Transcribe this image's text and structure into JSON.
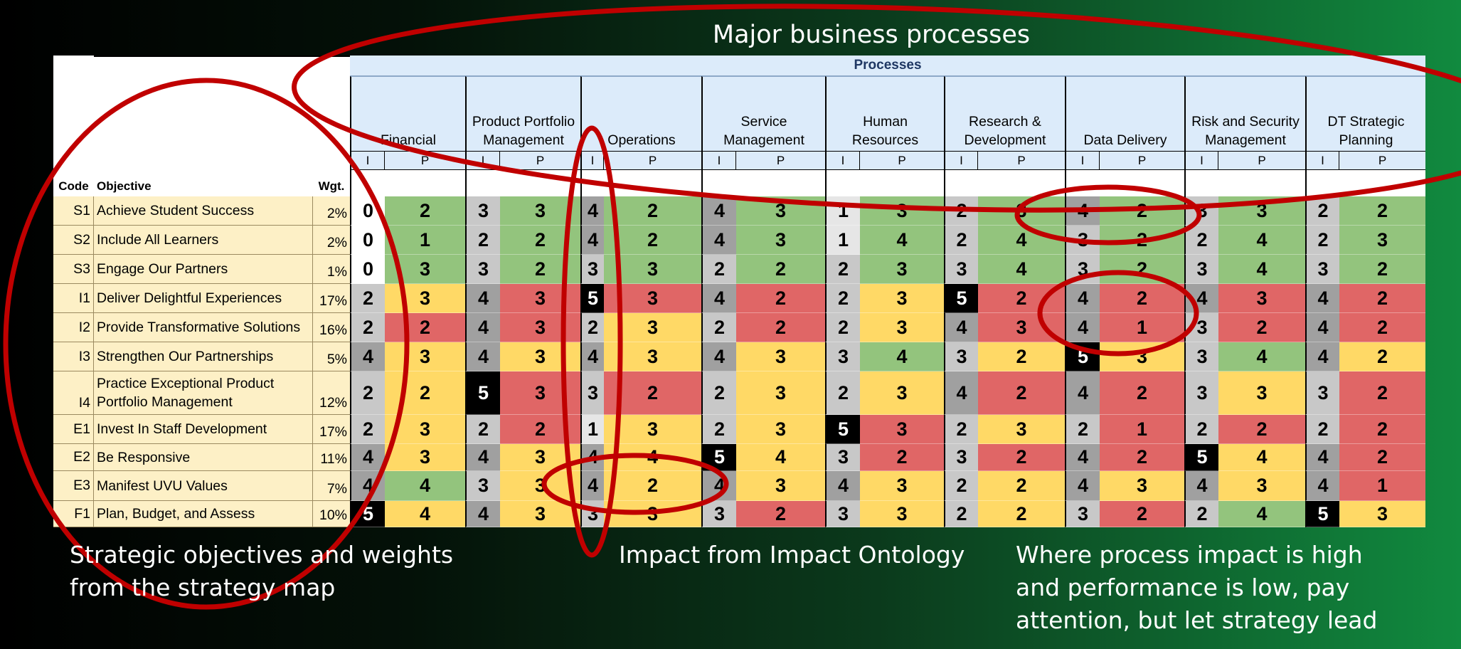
{
  "title": "Major business processes",
  "processes_header": "Processes",
  "column_headers": {
    "code": "Code",
    "objective": "Objective",
    "weight": "Wgt."
  },
  "impact_label": "I",
  "performance_label": "P",
  "processes": [
    "Financial",
    "Product Portfolio\nManagement",
    "Operations",
    "Service\nManagement",
    "Human\nResources",
    "Research &\nDevelopment",
    "Data Delivery",
    "Risk and Security\nManagement",
    "DT Strategic\nPlanning"
  ],
  "objectives": [
    {
      "code": "S1",
      "objective": "Achieve Student Success",
      "weight": "2%",
      "values": [
        [
          0,
          2
        ],
        [
          3,
          3
        ],
        [
          4,
          2
        ],
        [
          4,
          3
        ],
        [
          1,
          3
        ],
        [
          2,
          3
        ],
        [
          4,
          2
        ],
        [
          3,
          3
        ],
        [
          2,
          2
        ]
      ]
    },
    {
      "code": "S2",
      "objective": "Include All Learners",
      "weight": "2%",
      "values": [
        [
          0,
          1
        ],
        [
          2,
          2
        ],
        [
          4,
          2
        ],
        [
          4,
          3
        ],
        [
          1,
          4
        ],
        [
          2,
          4
        ],
        [
          3,
          2
        ],
        [
          2,
          4
        ],
        [
          2,
          3
        ]
      ]
    },
    {
      "code": "S3",
      "objective": "Engage Our Partners",
      "weight": "1%",
      "values": [
        [
          0,
          3
        ],
        [
          3,
          2
        ],
        [
          3,
          3
        ],
        [
          2,
          2
        ],
        [
          2,
          3
        ],
        [
          3,
          4
        ],
        [
          3,
          2
        ],
        [
          3,
          4
        ],
        [
          3,
          2
        ]
      ]
    },
    {
      "code": "I1",
      "objective": "Deliver Delightful Experiences",
      "weight": "17%",
      "values": [
        [
          2,
          3
        ],
        [
          4,
          3
        ],
        [
          5,
          3
        ],
        [
          4,
          2
        ],
        [
          2,
          3
        ],
        [
          5,
          2
        ],
        [
          4,
          2
        ],
        [
          4,
          3
        ],
        [
          4,
          2
        ]
      ]
    },
    {
      "code": "I2",
      "objective": "Provide Transformative Solutions",
      "weight": "16%",
      "values": [
        [
          2,
          2
        ],
        [
          4,
          3
        ],
        [
          2,
          3
        ],
        [
          2,
          2
        ],
        [
          2,
          3
        ],
        [
          4,
          3
        ],
        [
          4,
          1
        ],
        [
          3,
          2
        ],
        [
          4,
          2
        ]
      ]
    },
    {
      "code": "I3",
      "objective": "Strengthen Our Partnerships",
      "weight": "5%",
      "values": [
        [
          4,
          3
        ],
        [
          4,
          3
        ],
        [
          4,
          3
        ],
        [
          4,
          3
        ],
        [
          3,
          4
        ],
        [
          3,
          2
        ],
        [
          5,
          3
        ],
        [
          3,
          4
        ],
        [
          4,
          2
        ]
      ]
    },
    {
      "code": "I4",
      "objective": "Practice Exceptional Product\nPortfolio Management",
      "weight": "12%",
      "values": [
        [
          2,
          2
        ],
        [
          5,
          3
        ],
        [
          3,
          2
        ],
        [
          2,
          3
        ],
        [
          2,
          3
        ],
        [
          4,
          2
        ],
        [
          4,
          2
        ],
        [
          3,
          3
        ],
        [
          3,
          2
        ]
      ]
    },
    {
      "code": "E1",
      "objective": "Invest In Staff Development",
      "weight": "17%",
      "values": [
        [
          2,
          3
        ],
        [
          2,
          2
        ],
        [
          1,
          3
        ],
        [
          2,
          3
        ],
        [
          5,
          3
        ],
        [
          2,
          3
        ],
        [
          2,
          1
        ],
        [
          2,
          2
        ],
        [
          2,
          2
        ]
      ]
    },
    {
      "code": "E2",
      "objective": "Be Responsive",
      "weight": "11%",
      "values": [
        [
          4,
          3
        ],
        [
          4,
          3
        ],
        [
          4,
          4
        ],
        [
          5,
          4
        ],
        [
          3,
          2
        ],
        [
          3,
          2
        ],
        [
          4,
          2
        ],
        [
          5,
          4
        ],
        [
          4,
          2
        ]
      ]
    },
    {
      "code": "E3",
      "objective": "Manifest UVU Values",
      "weight": "7%",
      "values": [
        [
          4,
          4
        ],
        [
          3,
          3
        ],
        [
          4,
          2
        ],
        [
          4,
          3
        ],
        [
          4,
          3
        ],
        [
          2,
          2
        ],
        [
          4,
          3
        ],
        [
          4,
          3
        ],
        [
          4,
          1
        ]
      ]
    },
    {
      "code": "F1",
      "objective": "Plan, Budget, and Assess",
      "weight": "10%",
      "values": [
        [
          5,
          4
        ],
        [
          4,
          3
        ],
        [
          3,
          3
        ],
        [
          3,
          2
        ],
        [
          3,
          3
        ],
        [
          2,
          2
        ],
        [
          3,
          2
        ],
        [
          2,
          4
        ],
        [
          5,
          3
        ]
      ]
    }
  ],
  "perf_colors": [
    [
      "green",
      "green",
      "green",
      "green",
      "green",
      "green",
      "green",
      "green",
      "green"
    ],
    [
      "green",
      "green",
      "green",
      "green",
      "green",
      "green",
      "green",
      "green",
      "green"
    ],
    [
      "green",
      "green",
      "green",
      "green",
      "green",
      "green",
      "green",
      "green",
      "green"
    ],
    [
      "yellow",
      "red",
      "red",
      "red",
      "yellow",
      "red",
      "red",
      "red",
      "red"
    ],
    [
      "red",
      "red",
      "yellow",
      "red",
      "yellow",
      "red",
      "red",
      "red",
      "red"
    ],
    [
      "yellow",
      "yellow",
      "yellow",
      "yellow",
      "green",
      "yellow",
      "yellow",
      "green",
      "yellow"
    ],
    [
      "yellow",
      "red",
      "red",
      "yellow",
      "yellow",
      "red",
      "red",
      "yellow",
      "red"
    ],
    [
      "yellow",
      "red",
      "yellow",
      "yellow",
      "red",
      "yellow",
      "red",
      "red",
      "red"
    ],
    [
      "yellow",
      "yellow",
      "yellow",
      "yellow",
      "red",
      "red",
      "red",
      "yellow",
      "red"
    ],
    [
      "green",
      "yellow",
      "yellow",
      "yellow",
      "yellow",
      "yellow",
      "yellow",
      "yellow",
      "red"
    ],
    [
      "yellow",
      "yellow",
      "yellow",
      "red",
      "yellow",
      "yellow",
      "red",
      "green",
      "yellow"
    ]
  ],
  "colors": {
    "perf_green": "#93c47d",
    "perf_yellow": "#ffd966",
    "perf_red": "#e06666",
    "impact_0": "#ffffff",
    "impact_1": "#e6e6e6",
    "impact_2": "#c8c8c8",
    "impact_3": "#c8c8c8",
    "impact_4": "#a0a0a0",
    "impact_5": "#000000",
    "annotation_red": "#c00000"
  },
  "captions": {
    "left": "Strategic objectives and weights\nfrom the strategy map",
    "middle": "Impact from Impact Ontology",
    "right": "Where process impact is high\nand performance is low, pay\nattention, but let strategy lead"
  }
}
